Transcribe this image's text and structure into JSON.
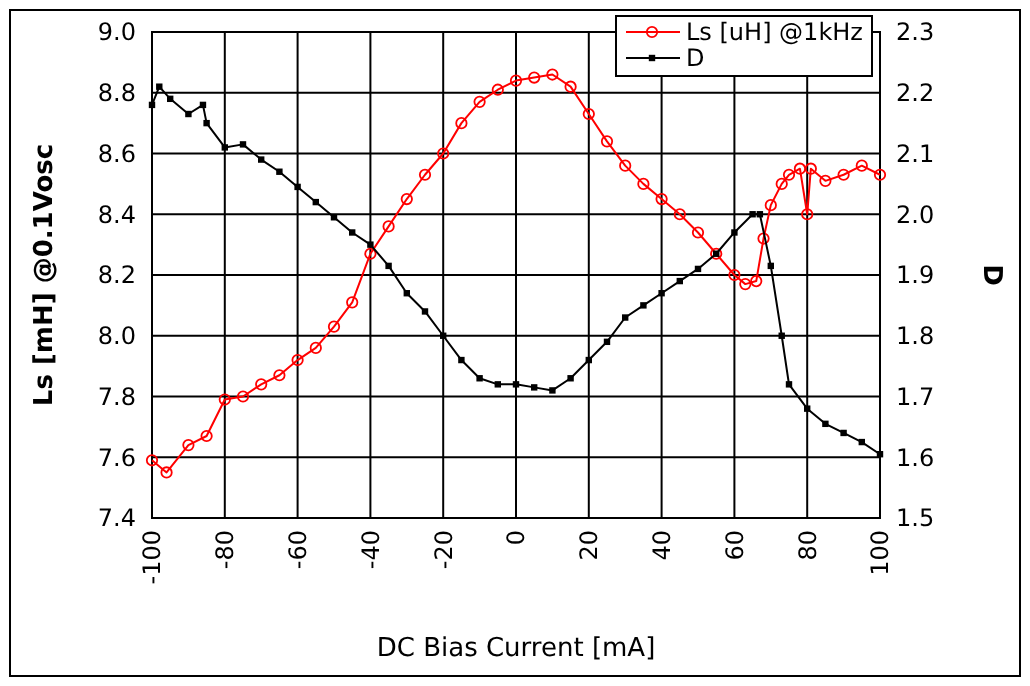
{
  "chart_data": {
    "type": "line",
    "xlabel": "DC Bias Current [mA]",
    "ylabel": "Ls [mH] @0.1Vosc",
    "y2label": "D",
    "xlim": [
      -100,
      100
    ],
    "xticks": [
      -100,
      -80,
      -60,
      -40,
      -20,
      0,
      20,
      40,
      60,
      80,
      100
    ],
    "ylim": [
      7.4,
      9.0
    ],
    "yticks": [
      {
        "value": 7.4,
        "label": "7.4"
      },
      {
        "value": 7.6,
        "label": "7.6"
      },
      {
        "value": 7.8,
        "label": "7.8"
      },
      {
        "value": 8.0,
        "label": "8.0"
      },
      {
        "value": 8.2,
        "label": "8.2"
      },
      {
        "value": 8.4,
        "label": "8.4"
      },
      {
        "value": 8.6,
        "label": "8.6"
      },
      {
        "value": 8.8,
        "label": "8.8"
      },
      {
        "value": 9.0,
        "label": "9.0"
      }
    ],
    "y2lim": [
      1.5,
      2.3
    ],
    "y2ticks": [
      {
        "value": 1.5,
        "label": "1.5"
      },
      {
        "value": 1.6,
        "label": "1.6"
      },
      {
        "value": 1.7,
        "label": "1.7"
      },
      {
        "value": 1.8,
        "label": "1.8"
      },
      {
        "value": 1.9,
        "label": "1.9"
      },
      {
        "value": 2.0,
        "label": "2.0"
      },
      {
        "value": 2.1,
        "label": "2.1"
      },
      {
        "value": 2.2,
        "label": "2.2"
      },
      {
        "value": 2.3,
        "label": "2.3"
      }
    ],
    "grid": true,
    "legend": "top right",
    "line_style": "solid",
    "series": [
      {
        "name": "Ls [uH] @1kHz",
        "color": "#ff0000",
        "marker": "circle",
        "x": [
          -100,
          -96,
          -90,
          -85,
          -80,
          -75,
          -70,
          -65,
          -60,
          -55,
          -50,
          -45,
          -40,
          -35,
          -30,
          -25,
          -20,
          -15,
          -10,
          -5,
          0,
          5,
          10,
          15,
          20,
          25,
          30,
          35,
          40,
          45,
          50,
          55,
          60,
          63,
          66,
          68,
          70,
          73,
          75,
          78,
          80,
          81,
          85,
          90,
          95,
          100
        ],
        "values": [
          7.59,
          7.55,
          7.64,
          7.67,
          7.79,
          7.8,
          7.84,
          7.87,
          7.92,
          7.96,
          8.03,
          8.11,
          8.27,
          8.36,
          8.45,
          8.53,
          8.6,
          8.7,
          8.77,
          8.81,
          8.84,
          8.85,
          8.86,
          8.82,
          8.73,
          8.64,
          8.56,
          8.5,
          8.45,
          8.4,
          8.34,
          8.27,
          8.2,
          8.17,
          8.18,
          8.32,
          8.43,
          8.5,
          8.53,
          8.55,
          8.4,
          8.55,
          8.51,
          8.53,
          8.56,
          8.53
        ]
      },
      {
        "name": "D",
        "color": "#000000",
        "marker": "square",
        "axis": "y2",
        "x": [
          -100,
          -98,
          -95,
          -90,
          -86,
          -85,
          -80,
          -75,
          -70,
          -65,
          -60,
          -55,
          -50,
          -45,
          -40,
          -35,
          -30,
          -25,
          -20,
          -15,
          -10,
          -5,
          0,
          5,
          10,
          15,
          20,
          25,
          30,
          35,
          40,
          45,
          50,
          55,
          60,
          65,
          67,
          70,
          73,
          75,
          80,
          85,
          90,
          95,
          100
        ],
        "values": [
          2.18,
          2.21,
          2.19,
          2.165,
          2.18,
          2.15,
          2.11,
          2.115,
          2.09,
          2.07,
          2.045,
          2.02,
          1.995,
          1.97,
          1.95,
          1.915,
          1.87,
          1.84,
          1.8,
          1.76,
          1.73,
          1.72,
          1.72,
          1.715,
          1.71,
          1.73,
          1.76,
          1.79,
          1.83,
          1.85,
          1.87,
          1.89,
          1.91,
          1.935,
          1.97,
          2.0,
          2.0,
          1.915,
          1.8,
          1.72,
          1.68,
          1.655,
          1.64,
          1.625,
          1.605
        ]
      }
    ]
  }
}
